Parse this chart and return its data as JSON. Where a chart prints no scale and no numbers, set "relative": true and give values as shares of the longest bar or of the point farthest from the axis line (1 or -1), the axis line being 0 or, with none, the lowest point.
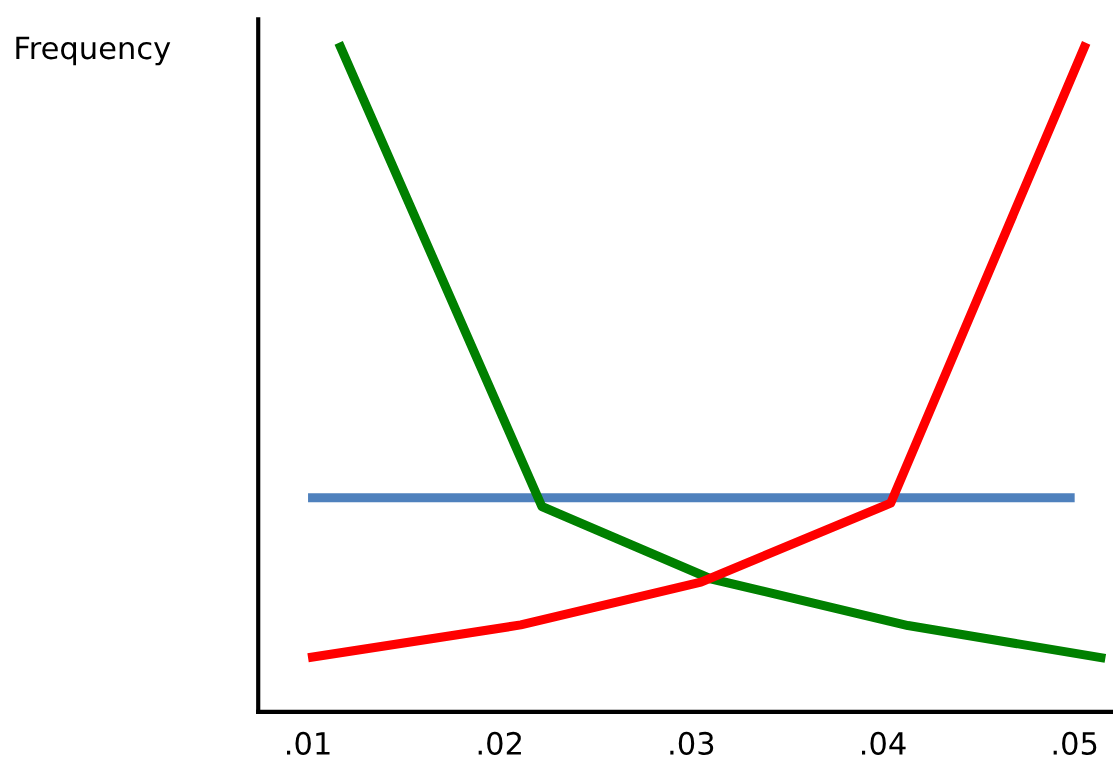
{
  "chart_data": {
    "type": "line",
    "ylabel": "Frequency",
    "relative": true,
    "tick_labels": "x",
    "grid": false,
    "legend": false,
    "marker": "none",
    "line_style": "solid",
    "xlim": [
      0.0074,
      0.052
    ],
    "xticks": [
      {
        "value": 0.01,
        "label": ".01"
      },
      {
        "value": 0.02,
        "label": ".02"
      },
      {
        "value": 0.03,
        "label": ".03"
      },
      {
        "value": 0.04,
        "label": ".04"
      },
      {
        "value": 0.05,
        "label": ".05"
      }
    ],
    "series": [
      {
        "color": "#4f81bd",
        "x": [
          0.01,
          0.05
        ],
        "values": [
          0.32,
          0.32
        ]
      },
      {
        "color": "#008000",
        "x": [
          0.0116,
          0.0222,
          0.031,
          0.0413,
          0.0516
        ],
        "values": [
          1.0,
          0.307,
          0.199,
          0.129,
          0.08
        ]
      },
      {
        "color": "#ff0000",
        "x": [
          0.01,
          0.0211,
          0.0305,
          0.0404,
          0.0506
        ],
        "values": [
          0.081,
          0.13,
          0.194,
          0.312,
          1.0
        ]
      }
    ]
  }
}
